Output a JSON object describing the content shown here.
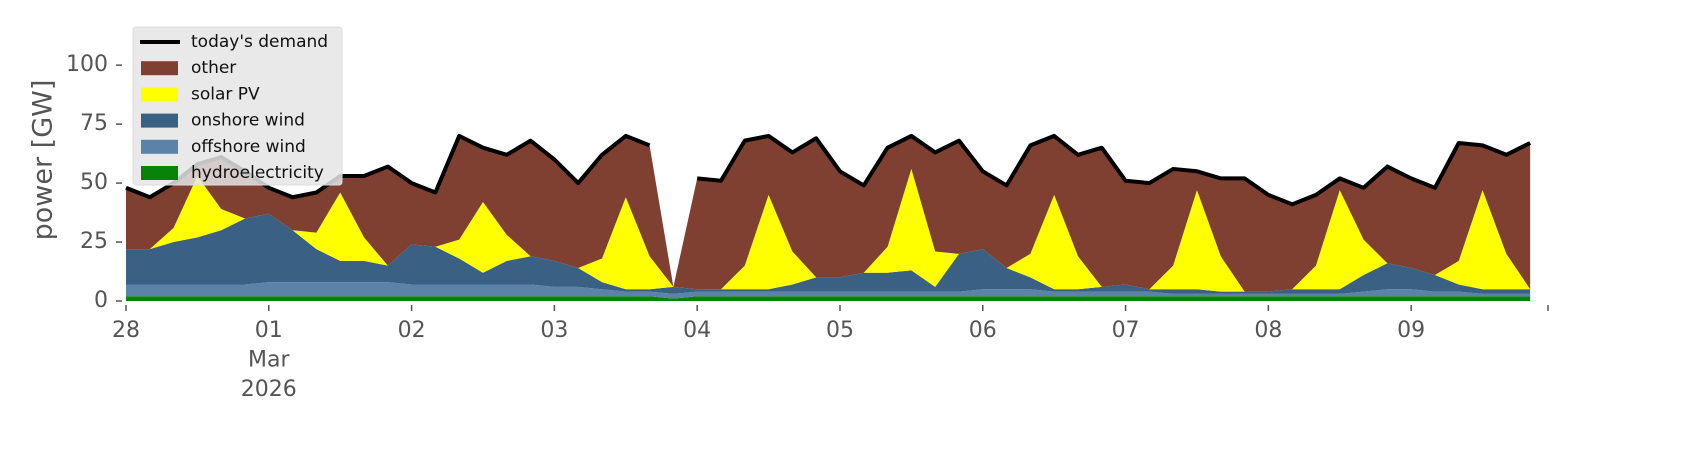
{
  "chart_data": {
    "type": "area",
    "y_label": "power [GW]",
    "legend": "upper left",
    "x": [
      0,
      4,
      8,
      12,
      16,
      20,
      24,
      28,
      32,
      36,
      40,
      44,
      48,
      52,
      56,
      60,
      64,
      68,
      72,
      76,
      80,
      84,
      88,
      92,
      96,
      100,
      104,
      108,
      112,
      116,
      120,
      124,
      128,
      132,
      136,
      140,
      144,
      148,
      152,
      156,
      160,
      164,
      168,
      172,
      176,
      180,
      184,
      188,
      192,
      196,
      200,
      204,
      208,
      212,
      216,
      220,
      224,
      228,
      232,
      236
    ],
    "xlim": [
      0,
      239
    ],
    "xticks": [
      {
        "value": 0,
        "label": "28"
      },
      {
        "value": 24,
        "label": "01\nMar\n2026"
      },
      {
        "value": 48,
        "label": "02"
      },
      {
        "value": 72,
        "label": "03"
      },
      {
        "value": 96,
        "label": "04"
      },
      {
        "value": 120,
        "label": "05"
      },
      {
        "value": 144,
        "label": "06"
      },
      {
        "value": 168,
        "label": "07"
      },
      {
        "value": 192,
        "label": "08"
      },
      {
        "value": 216,
        "label": "09"
      }
    ],
    "ylim": [
      0,
      120
    ],
    "yticks": [
      0,
      25,
      50,
      75,
      100
    ],
    "series": [
      {
        "name": "today's demand",
        "kind": "line",
        "color": "#000000",
        "values": [
          48,
          44,
          50,
          58,
          61,
          55,
          48,
          44,
          46,
          53,
          53,
          57,
          50,
          46,
          70,
          65,
          62,
          68,
          60,
          50,
          62,
          70,
          66,
          null,
          52,
          51,
          68,
          70,
          63,
          69,
          55,
          49,
          65,
          70,
          63,
          68,
          55,
          49,
          66,
          70,
          62,
          65,
          51,
          50,
          56,
          55,
          52,
          52,
          45,
          41,
          45,
          52,
          48,
          57,
          52,
          48,
          67,
          66,
          62,
          67
        ]
      },
      {
        "name": "other",
        "kind": "stack",
        "color": "#7f4032",
        "values": [
          26,
          22,
          19,
          5,
          22,
          20,
          11,
          14,
          17,
          7,
          26,
          42,
          26,
          23,
          44,
          23,
          34,
          49,
          43,
          36,
          44,
          26,
          47,
          0,
          47,
          46,
          53,
          25,
          42,
          59,
          45,
          37,
          42,
          14,
          42,
          48,
          33,
          35,
          46,
          25,
          43,
          59,
          44,
          45,
          41,
          8,
          33,
          48,
          41,
          36,
          30,
          5,
          22,
          41,
          38,
          37,
          50,
          19,
          42,
          62
        ]
      },
      {
        "name": "solar PV",
        "kind": "stack",
        "color": "#ffff00",
        "values": [
          0,
          0,
          6,
          26,
          9,
          0,
          0,
          0,
          7,
          29,
          10,
          0,
          0,
          0,
          8,
          30,
          11,
          0,
          0,
          0,
          10,
          39,
          14,
          0,
          0,
          0,
          10,
          40,
          14,
          0,
          0,
          0,
          11,
          43,
          15,
          0,
          0,
          0,
          10,
          40,
          14,
          0,
          0,
          0,
          10,
          42,
          15,
          0,
          0,
          0,
          10,
          42,
          15,
          0,
          0,
          0,
          10,
          42,
          15,
          0
        ]
      },
      {
        "name": "onshore wind",
        "kind": "stack",
        "color": "#3a6183",
        "values": [
          15,
          15,
          18,
          20,
          23,
          28,
          29,
          22,
          14,
          9,
          9,
          7,
          17,
          16,
          11,
          5,
          10,
          12,
          11,
          8,
          3,
          1,
          1,
          3,
          1,
          1,
          1,
          1,
          3,
          6,
          6,
          8,
          8,
          9,
          2,
          16,
          17,
          9,
          5,
          1,
          1,
          2,
          3,
          1,
          2,
          2,
          1,
          1,
          1,
          2,
          2,
          2,
          7,
          11,
          9,
          7,
          3,
          2,
          2,
          2
        ]
      },
      {
        "name": "offshore wind",
        "kind": "stack",
        "color": "#5b83a8",
        "values": [
          5,
          5,
          5,
          5,
          5,
          5,
          6,
          6,
          6,
          6,
          6,
          6,
          5,
          5,
          5,
          5,
          5,
          5,
          4,
          4,
          3,
          2,
          2,
          2,
          2,
          2,
          2,
          2,
          2,
          2,
          2,
          2,
          2,
          2,
          2,
          2,
          3,
          3,
          3,
          2,
          2,
          2,
          2,
          2,
          1,
          1,
          1,
          1,
          1,
          1,
          1,
          1,
          2,
          3,
          3,
          2,
          2,
          1,
          1,
          1
        ]
      },
      {
        "name": "hydroelectricity",
        "kind": "stack",
        "color": "#088208",
        "values": [
          2,
          2,
          2,
          2,
          2,
          2,
          2,
          2,
          2,
          2,
          2,
          2,
          2,
          2,
          2,
          2,
          2,
          2,
          2,
          2,
          2,
          2,
          2,
          1,
          2,
          2,
          2,
          2,
          2,
          2,
          2,
          2,
          2,
          2,
          2,
          2,
          2,
          2,
          2,
          2,
          2,
          2,
          2,
          2,
          2,
          2,
          2,
          2,
          2,
          2,
          2,
          2,
          2,
          2,
          2,
          2,
          2,
          2,
          2,
          2
        ]
      }
    ]
  }
}
